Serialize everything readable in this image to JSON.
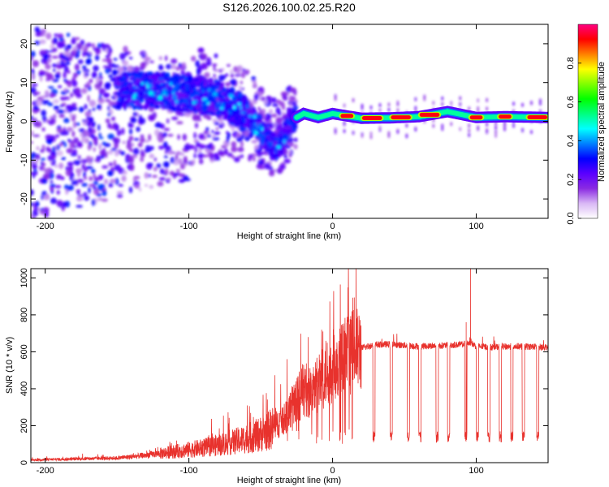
{
  "figure": {
    "title": "S126.2026.100.02.25.R20"
  },
  "chart_data": [
    {
      "type": "heatmap",
      "name": "spectrogram",
      "xlabel": "Height of straight line (km)",
      "ylabel": "Frequency (Hz)",
      "xlim": [
        -210,
        150
      ],
      "ylim": [
        -25,
        25
      ],
      "xticks": [
        -200,
        -100,
        0,
        100
      ],
      "yticks": [
        -20,
        -10,
        0,
        10,
        20
      ],
      "colorbar": {
        "label": "Normalized spectral amplitude",
        "range": [
          0,
          1
        ],
        "ticks": [
          "0.0",
          "0.2",
          "0.4",
          "0.6",
          "0.8"
        ],
        "colors": [
          "#ffffff",
          "#d9b8f5",
          "#8a2be2",
          "#5a00ff",
          "#0000ff",
          "#0080ff",
          "#00ffff",
          "#00ff80",
          "#00ff00",
          "#80ff00",
          "#ffff00",
          "#ff8000",
          "#ff0000",
          "#ff0080"
        ]
      },
      "ridge": {
        "description_points_x": [
          -140,
          -120,
          -100,
          -80,
          -70,
          -60,
          -50,
          -45,
          -40,
          -35,
          -30,
          -25,
          -20,
          -10,
          0,
          20,
          40,
          60,
          80,
          100,
          120,
          150
        ],
        "description_points_y": [
          8,
          8,
          7,
          6,
          4,
          2,
          -2,
          -5,
          -7,
          -5,
          0,
          1,
          2,
          1,
          2,
          0.8,
          0.9,
          1.2,
          2.5,
          1,
          1.2,
          1
        ]
      },
      "hot_segments_x": [
        [
          5,
          15
        ],
        [
          20,
          35
        ],
        [
          40,
          55
        ],
        [
          60,
          75
        ],
        [
          95,
          105
        ],
        [
          115,
          125
        ],
        [
          135,
          150
        ]
      ]
    },
    {
      "type": "line",
      "name": "snr",
      "xlabel": "Height of straight line (km)",
      "ylabel": "SNR (10 * v/v)",
      "xlim": [
        -210,
        150
      ],
      "ylim": [
        0,
        1050
      ],
      "xticks": [
        -200,
        -100,
        0,
        100
      ],
      "yticks": [
        0,
        200,
        400,
        600,
        800,
        1000
      ],
      "color": "#e8322d",
      "profile": {
        "x": [
          -210,
          -180,
          -150,
          -130,
          -110,
          -90,
          -70,
          -55,
          -45,
          -38,
          -32,
          -25,
          -20,
          -15,
          -10,
          -5,
          0,
          5,
          10,
          15,
          20,
          25,
          30,
          40,
          60,
          80,
          90,
          96,
          100,
          110,
          130,
          150
        ],
        "y": [
          15,
          20,
          25,
          40,
          60,
          80,
          110,
          140,
          170,
          210,
          260,
          340,
          400,
          380,
          420,
          480,
          520,
          560,
          580,
          600,
          620,
          630,
          640,
          640,
          630,
          635,
          640,
          650,
          630,
          625,
          630,
          625
        ]
      },
      "spikes": [
        {
          "x": -17,
          "y": 680
        },
        {
          "x": 10,
          "y": 690
        },
        {
          "x": 96,
          "y": 1050
        },
        {
          "x": 93,
          "y": 760
        }
      ],
      "dropouts_x": [
        28,
        40,
        52,
        60,
        72,
        80,
        92,
        100,
        108,
        116,
        124,
        132,
        142
      ],
      "dropout_level": 140
    }
  ]
}
